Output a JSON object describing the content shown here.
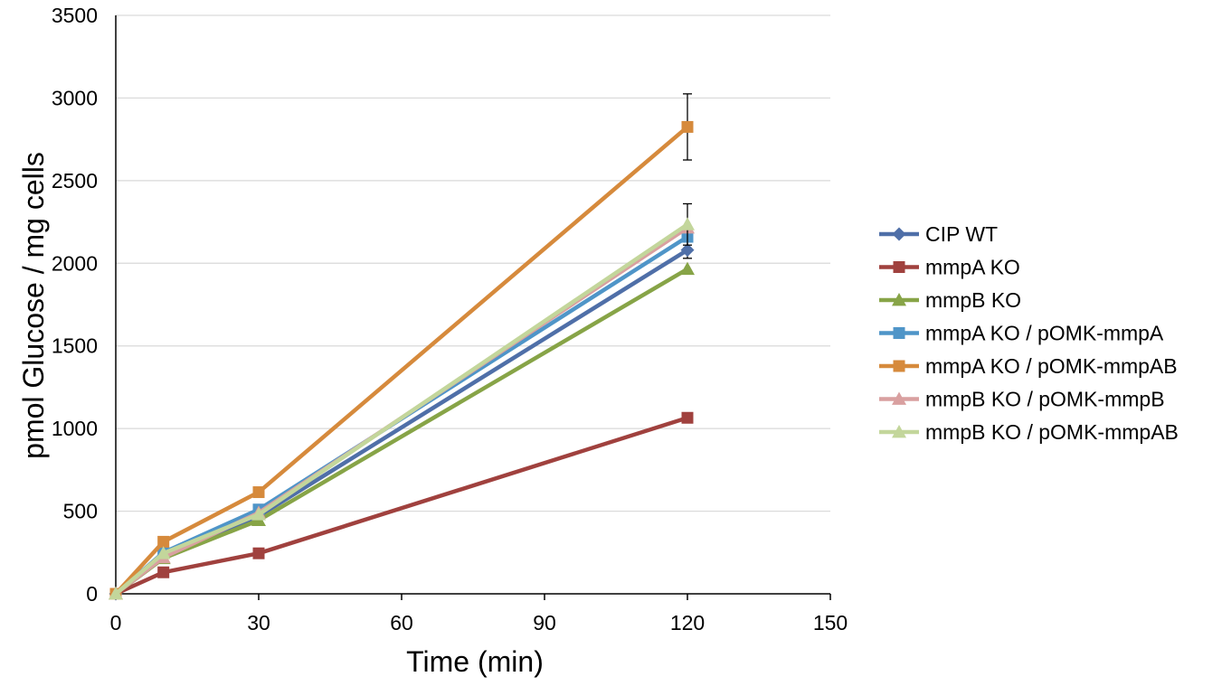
{
  "chart_data": {
    "type": "line",
    "title": "",
    "xlabel": "Time (min)",
    "ylabel": "pmol Glucose / mg cells",
    "xlim": [
      0,
      150
    ],
    "ylim": [
      0,
      3500
    ],
    "xticks": [
      0,
      30,
      60,
      90,
      120,
      150
    ],
    "yticks": [
      0,
      500,
      1000,
      1500,
      2000,
      2500,
      3000,
      3500
    ],
    "x": [
      0,
      10,
      30,
      120
    ],
    "grid": "horizontal",
    "legend_position": "right",
    "series": [
      {
        "name": "CIP WT",
        "marker": "diamond",
        "color": "#4F6FA8",
        "values": [
          0,
          230,
          470,
          2080
        ],
        "error": [
          0,
          0,
          0,
          50
        ]
      },
      {
        "name": "mmpA KO",
        "marker": "square",
        "color": "#A0413E",
        "values": [
          0,
          130,
          245,
          1065
        ],
        "error": [
          0,
          0,
          0,
          0
        ]
      },
      {
        "name": "mmpB KO",
        "marker": "triangle",
        "color": "#87A447",
        "values": [
          0,
          215,
          445,
          1965
        ],
        "error": [
          0,
          0,
          0,
          0
        ]
      },
      {
        "name": "mmpA KO / pOMK-mmpA",
        "marker": "square",
        "color": "#4F95C8",
        "values": [
          0,
          250,
          510,
          2160
        ],
        "error": [
          0,
          0,
          0,
          0
        ]
      },
      {
        "name": "mmpA KO / pOMK-mmpAB",
        "marker": "square",
        "color": "#D68A3C",
        "values": [
          0,
          315,
          615,
          2825
        ],
        "error": [
          0,
          0,
          0,
          200
        ]
      },
      {
        "name": "mmpB KO / pOMK-mmpB",
        "marker": "triangle",
        "color": "#D9A0A0",
        "values": [
          0,
          220,
          490,
          2215
        ],
        "error": [
          0,
          0,
          0,
          0
        ]
      },
      {
        "name": "mmpB KO / pOMK-mmpAB",
        "marker": "triangle",
        "color": "#C3D69B",
        "values": [
          0,
          245,
          480,
          2235
        ],
        "error": [
          0,
          0,
          0,
          125
        ]
      }
    ]
  }
}
